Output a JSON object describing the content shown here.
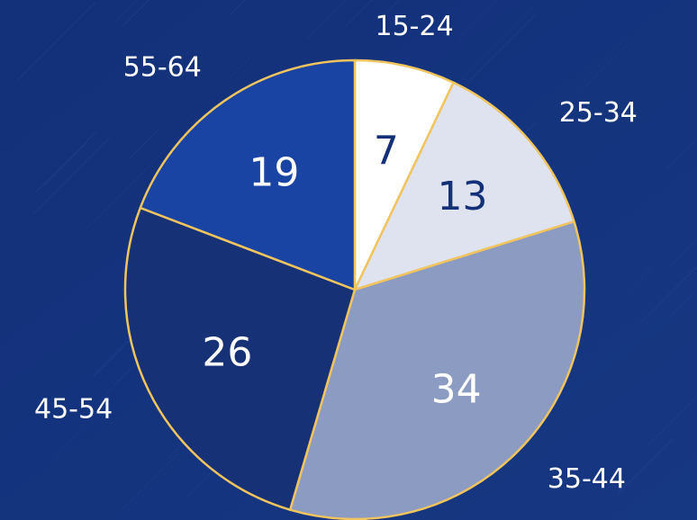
{
  "chart_data": {
    "type": "pie",
    "title": "",
    "categories": [
      "15-24",
      "25-34",
      "35-44",
      "45-54",
      "55-64"
    ],
    "values": [
      7,
      13,
      34,
      26,
      19
    ],
    "start_angle_deg": 0,
    "direction": "clockwise",
    "legend": "none",
    "slice_colors": [
      "#ffffff",
      "#dfe2ef",
      "#8c9bc2",
      "#173177",
      "#1a44a4"
    ],
    "value_label_colors": [
      "#143079",
      "#143079",
      "#ffffff",
      "#ffffff",
      "#ffffff"
    ],
    "slice_border_color": "#f1c45e",
    "background_color": "#143079"
  }
}
